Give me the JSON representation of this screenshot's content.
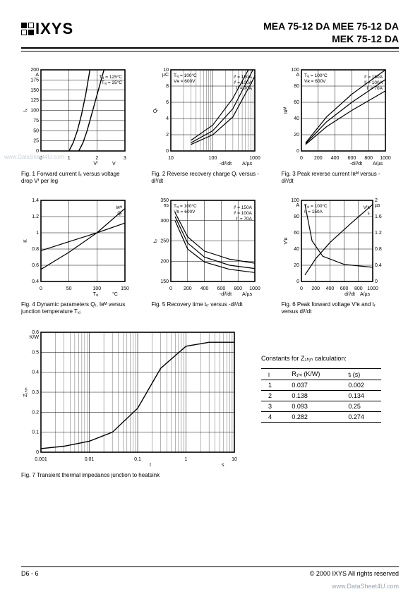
{
  "header": {
    "logo_text": "IXYS",
    "parts_line1": "MEA 75-12 DA MEE 75-12 DA",
    "parts_line2": "MEK 75-12 DA"
  },
  "charts": [
    {
      "id": "fig1",
      "type": "line",
      "caption": "Fig. 1  Forward current Iₓ versus voltage drop Vᶠ per leg",
      "xaxis": {
        "label": "Vᶠ",
        "unit": "V",
        "min": 0,
        "max": 3,
        "ticks": [
          0,
          1,
          2,
          3
        ]
      },
      "yaxis": {
        "label": "Iₓ",
        "unit": "A",
        "min": 0,
        "max": 200,
        "ticks": [
          0,
          25,
          50,
          75,
          100,
          125,
          150,
          175,
          200
        ]
      },
      "legend_text": [
        "Tᵥⱼ = 125°C",
        "Tᵥⱼ = 25°C"
      ],
      "series": [
        {
          "label": "125C",
          "color": "#000000",
          "width": 1.4,
          "points": [
            [
              1.0,
              0
            ],
            [
              1.15,
              20
            ],
            [
              1.3,
              50
            ],
            [
              1.45,
              90
            ],
            [
              1.6,
              140
            ],
            [
              1.75,
              200
            ]
          ]
        },
        {
          "label": "25C",
          "color": "#000000",
          "width": 1.4,
          "points": [
            [
              1.35,
              0
            ],
            [
              1.5,
              20
            ],
            [
              1.65,
              50
            ],
            [
              1.85,
              100
            ],
            [
              2.05,
              150
            ],
            [
              2.25,
              200
            ]
          ]
        }
      ],
      "grid_color": "#000000",
      "bg": "#ffffff"
    },
    {
      "id": "fig2",
      "type": "line",
      "caption": "Fig. 2  Reverse recovery charge Qᵣ versus -diᶠ/dt",
      "xaxis": {
        "label": "-diᶠ/dt",
        "unit": "A/µs",
        "scale": "log",
        "min": 10,
        "max": 1000,
        "ticks": [
          10,
          100,
          1000
        ]
      },
      "yaxis": {
        "label": "Qᵣ",
        "unit": "µC",
        "min": 0,
        "max": 10,
        "ticks": [
          0,
          2,
          4,
          6,
          8,
          10
        ]
      },
      "cond_text": [
        "Tᵥⱼ = 100°C",
        "Vʀ = 600V"
      ],
      "legend_text": [
        "Iᶠ = 150A",
        "Iᶠ = 100A",
        "Iᶠ = 70A"
      ],
      "series": [
        {
          "label": "150A",
          "color": "#000000",
          "width": 1.2,
          "points": [
            [
              30,
              1.3
            ],
            [
              100,
              3.2
            ],
            [
              300,
              6.5
            ],
            [
              700,
              10
            ]
          ]
        },
        {
          "label": "100A",
          "color": "#000000",
          "width": 1.2,
          "points": [
            [
              30,
              1.0
            ],
            [
              100,
              2.5
            ],
            [
              300,
              5.2
            ],
            [
              900,
              10
            ]
          ]
        },
        {
          "label": "70A",
          "color": "#000000",
          "width": 1.2,
          "points": [
            [
              30,
              0.8
            ],
            [
              100,
              2.0
            ],
            [
              300,
              4.2
            ],
            [
              1000,
              9.2
            ]
          ]
        }
      ],
      "grid_color": "#000000",
      "bg": "#ffffff"
    },
    {
      "id": "fig3",
      "type": "line",
      "caption": "Fig. 3  Peak reverse current Iʀᴹ versus -diᶠ/dt",
      "xaxis": {
        "label": "-diᶠ/dt",
        "unit": "A/µs",
        "min": 0,
        "max": 1000,
        "ticks": [
          0,
          200,
          400,
          600,
          800,
          1000
        ]
      },
      "yaxis": {
        "label": "Iʀᴹ",
        "unit": "A",
        "min": 0,
        "max": 100,
        "ticks": [
          0,
          20,
          40,
          60,
          80,
          100
        ]
      },
      "cond_text": [
        "Tᵥⱼ = 100°C",
        "Vʀ = 600V"
      ],
      "legend_text": [
        "Iᶠ = 150A",
        "Iᶠ = 100A",
        "Iᶠ = 70A"
      ],
      "series": [
        {
          "label": "150A",
          "color": "#000000",
          "width": 1.2,
          "points": [
            [
              50,
              10
            ],
            [
              300,
              42
            ],
            [
              600,
              70
            ],
            [
              1000,
              100
            ]
          ]
        },
        {
          "label": "100A",
          "color": "#000000",
          "width": 1.2,
          "points": [
            [
              50,
              9
            ],
            [
              300,
              36
            ],
            [
              600,
              60
            ],
            [
              1000,
              88
            ]
          ]
        },
        {
          "label": "70A",
          "color": "#000000",
          "width": 1.2,
          "points": [
            [
              50,
              8
            ],
            [
              300,
              30
            ],
            [
              600,
              50
            ],
            [
              1000,
              74
            ]
          ]
        }
      ],
      "grid_color": "#000000",
      "bg": "#ffffff"
    },
    {
      "id": "fig4",
      "type": "line",
      "caption": "Fig. 4  Dynamic parameters Qᵣ, Iʀᴹ versus junction temperature Tᵥⱼ",
      "xaxis": {
        "label": "Tᵥⱼ",
        "unit": "°C",
        "min": 0,
        "max": 150,
        "ticks": [
          0,
          50,
          100,
          150
        ]
      },
      "yaxis": {
        "label": "K",
        "unit": "",
        "min": 0.4,
        "max": 1.4,
        "ticks": [
          0.4,
          0.6,
          0.8,
          1.0,
          1.2,
          1.4
        ]
      },
      "legend_text": [
        "Iʀᴹ",
        "Qᵣ"
      ],
      "series": [
        {
          "label": "IRM",
          "color": "#000000",
          "width": 1.2,
          "points": [
            [
              0,
              0.78
            ],
            [
              50,
              0.89
            ],
            [
              100,
              1.0
            ],
            [
              150,
              1.12
            ]
          ]
        },
        {
          "label": "Qr",
          "color": "#000000",
          "width": 1.2,
          "points": [
            [
              0,
              0.55
            ],
            [
              50,
              0.76
            ],
            [
              100,
              1.0
            ],
            [
              150,
              1.3
            ]
          ]
        }
      ],
      "grid_color": "#000000",
      "bg": "#ffffff"
    },
    {
      "id": "fig5",
      "type": "line",
      "caption": "Fig. 5  Recovery time tᵣᵣ versus -diᶠ/dt",
      "xaxis": {
        "label": "-diᶠ/dt",
        "unit": "A/µs",
        "min": 0,
        "max": 1000,
        "ticks": [
          0,
          200,
          400,
          600,
          800,
          1000
        ]
      },
      "yaxis": {
        "label": "tᵣᵣ",
        "unit": "ns",
        "min": 150,
        "max": 350,
        "ticks": [
          150,
          200,
          250,
          300,
          350
        ]
      },
      "cond_text": [
        "Tᵥⱼ = 100°C",
        "Vʀ = 600V"
      ],
      "legend_text": [
        "Iᶠ = 150A",
        "Iᶠ = 100A",
        "Iᶠ = 70A"
      ],
      "series": [
        {
          "label": "150A",
          "color": "#000000",
          "width": 1.2,
          "points": [
            [
              50,
              320
            ],
            [
              200,
              260
            ],
            [
              400,
              225
            ],
            [
              700,
              205
            ],
            [
              1000,
              195
            ]
          ]
        },
        {
          "label": "100A",
          "color": "#000000",
          "width": 1.2,
          "points": [
            [
              50,
              310
            ],
            [
              200,
              245
            ],
            [
              400,
              210
            ],
            [
              700,
              190
            ],
            [
              1000,
              182
            ]
          ]
        },
        {
          "label": "70A",
          "color": "#000000",
          "width": 1.2,
          "points": [
            [
              50,
              300
            ],
            [
              200,
              230
            ],
            [
              400,
              198
            ],
            [
              700,
              180
            ],
            [
              1000,
              172
            ]
          ]
        }
      ],
      "grid_color": "#000000",
      "bg": "#ffffff"
    },
    {
      "id": "fig6",
      "type": "line",
      "caption": "Fig. 6  Peak forward voltage Vᶠʀ and tᵣ versus diᶠ/dt",
      "xaxis": {
        "label": "diᶠ/dt",
        "unit": "A/µs",
        "min": 0,
        "max": 1000,
        "ticks": [
          0,
          200,
          400,
          600,
          800,
          1000
        ]
      },
      "yaxis": {
        "label": "Vᶠʀ",
        "unit": "A",
        "min": 0,
        "max": 100,
        "ticks": [
          0,
          20,
          40,
          60,
          80,
          100
        ]
      },
      "yaxis2": {
        "label": "tᵣ",
        "unit": "µs",
        "min": 0,
        "max": 2.0,
        "ticks": [
          0,
          0.4,
          0.8,
          1.2,
          1.6,
          2.0
        ]
      },
      "legend_text": [
        "Vᶠʀ",
        "tᵣ"
      ],
      "cond_text": [
        "Tᵥⱼ = 100°C",
        "Iᶠ = 150A"
      ],
      "series": [
        {
          "label": "VFR",
          "color": "#000000",
          "width": 1.2,
          "points": [
            [
              50,
              8
            ],
            [
              200,
              28
            ],
            [
              400,
              48
            ],
            [
              700,
              72
            ],
            [
              1000,
              95
            ]
          ]
        },
        {
          "label": "tr",
          "color": "#000000",
          "width": 1.2,
          "axis": "y2",
          "points": [
            [
              50,
              1.9
            ],
            [
              150,
              1.0
            ],
            [
              300,
              0.62
            ],
            [
              600,
              0.42
            ],
            [
              1000,
              0.35
            ]
          ]
        }
      ],
      "grid_color": "#000000",
      "bg": "#ffffff"
    }
  ],
  "fig7": {
    "id": "fig7",
    "type": "line",
    "caption": "Fig. 7  Transient thermal impedance junction to heatsink",
    "xaxis": {
      "label": "t",
      "unit": "s",
      "scale": "log",
      "min": 0.001,
      "max": 10,
      "ticks": [
        0.001,
        0.01,
        0.1,
        1,
        10
      ]
    },
    "yaxis": {
      "label": "Z₁ₕⱼₕ",
      "unit": "K/W",
      "min": 0,
      "max": 0.6,
      "ticks": [
        0,
        0.1,
        0.2,
        0.3,
        0.4,
        0.5,
        0.6
      ]
    },
    "series": [
      {
        "label": "Zth",
        "color": "#000000",
        "width": 1.4,
        "points": [
          [
            0.001,
            0.018
          ],
          [
            0.003,
            0.03
          ],
          [
            0.01,
            0.055
          ],
          [
            0.03,
            0.1
          ],
          [
            0.1,
            0.22
          ],
          [
            0.3,
            0.42
          ],
          [
            1,
            0.53
          ],
          [
            3,
            0.55
          ],
          [
            10,
            0.55
          ]
        ]
      }
    ],
    "grid_color": "#000000",
    "bg": "#ffffff"
  },
  "constants": {
    "title": "Constants for Z₁ₕⱼₕ calculation:",
    "columns": [
      "i",
      "R₁ₕᵢ (K/W)",
      "tᵢ (s)"
    ],
    "rows": [
      [
        "1",
        "0.037",
        "0.002"
      ],
      [
        "2",
        "0.138",
        "0.134"
      ],
      [
        "3",
        "0.093",
        "0.25"
      ],
      [
        "4",
        "0.282",
        "0.274"
      ]
    ]
  },
  "footer": {
    "left": "D6 - 6",
    "right": "© 2000 IXYS All rights reserved"
  },
  "watermark_right": "www.DataSheet4U.com",
  "watermark_left": "www.DataSheet4U.com"
}
